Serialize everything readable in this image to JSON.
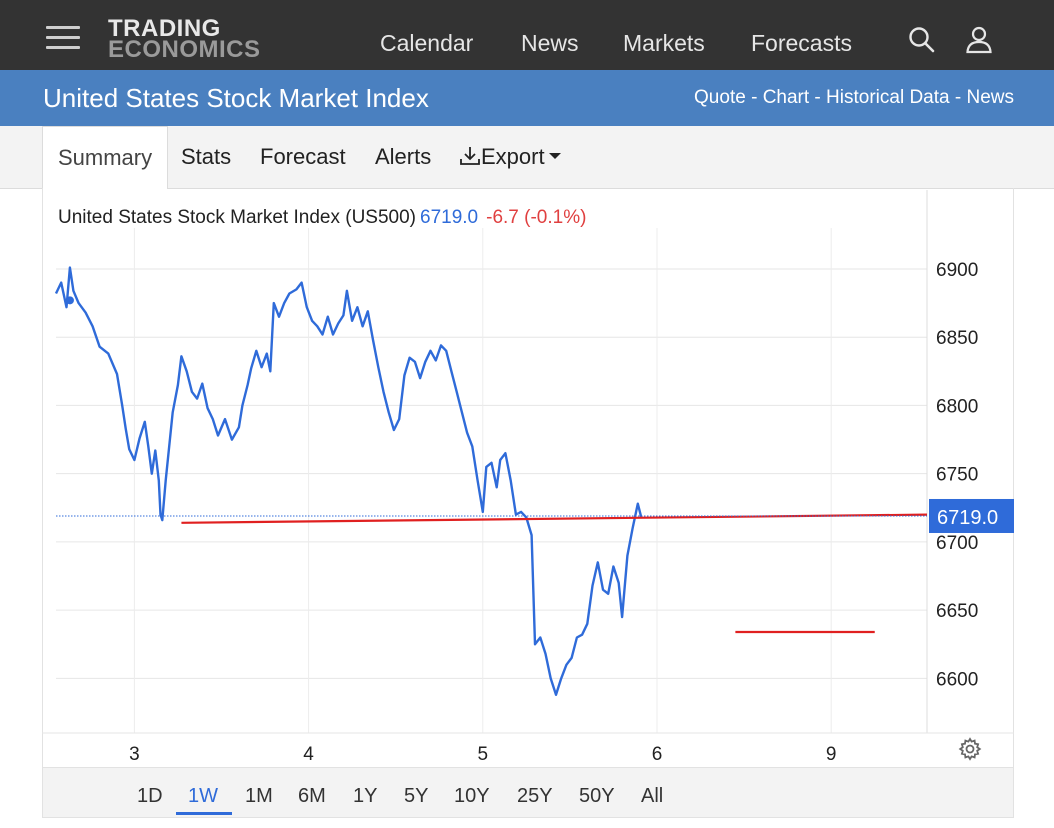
{
  "header": {
    "logo_line1": "TRADING",
    "logo_line2": "ECONOMICS",
    "nav": [
      "Calendar",
      "News",
      "Markets",
      "Forecasts"
    ],
    "icons": [
      "search-icon",
      "user-icon",
      "menu-icon"
    ]
  },
  "title_bar": {
    "title": "United States Stock Market Index",
    "links": [
      "Quote",
      "Chart",
      "Historical Data",
      "News"
    ],
    "separator": " - "
  },
  "tabs": [
    "Summary",
    "Stats",
    "Forecast",
    "Alerts",
    "Export"
  ],
  "chart_header": {
    "name": "United States Stock Market Index (US500)",
    "price": "6719.0",
    "change": "-6.7 (-0.1%)"
  },
  "ranges": [
    "1D",
    "1W",
    "1M",
    "6M",
    "1Y",
    "5Y",
    "10Y",
    "25Y",
    "50Y",
    "All"
  ],
  "active_range": "1W",
  "colors": {
    "topbar": "#333333",
    "bluebar": "#4a80c0",
    "line": "#2f6bd9",
    "annotation": "#e02020",
    "negative": "#e04040"
  },
  "chart_data": {
    "type": "line",
    "ylim": [
      6560,
      6930
    ],
    "y_ticks": [
      6600,
      6650,
      6700,
      6750,
      6800,
      6850,
      6900
    ],
    "x_tick_labels": [
      "3",
      "4",
      "5",
      "6",
      "9"
    ],
    "x_tick_positions": [
      1.0,
      2.0,
      3.0,
      4.0,
      5.0
    ],
    "xlim": [
      0.55,
      5.55
    ],
    "current_value": 6719.0,
    "current_label": "6719.0",
    "series": [
      {
        "values": [
          [
            0.55,
            6882
          ],
          [
            0.58,
            6890
          ],
          [
            0.61,
            6872
          ],
          [
            0.63,
            6901
          ],
          [
            0.65,
            6884
          ],
          [
            0.68,
            6875
          ],
          [
            0.72,
            6868
          ],
          [
            0.76,
            6858
          ],
          [
            0.8,
            6843
          ],
          [
            0.85,
            6838
          ],
          [
            0.9,
            6823
          ],
          [
            0.93,
            6800
          ],
          [
            0.95,
            6783
          ],
          [
            0.97,
            6768
          ],
          [
            1.0,
            6760
          ],
          [
            1.03,
            6776
          ],
          [
            1.06,
            6788
          ],
          [
            1.08,
            6770
          ],
          [
            1.1,
            6750
          ],
          [
            1.12,
            6767
          ],
          [
            1.14,
            6745
          ],
          [
            1.15,
            6720
          ],
          [
            1.16,
            6716
          ],
          [
            1.18,
            6745
          ],
          [
            1.2,
            6770
          ],
          [
            1.22,
            6795
          ],
          [
            1.25,
            6815
          ],
          [
            1.27,
            6836
          ],
          [
            1.3,
            6825
          ],
          [
            1.33,
            6810
          ],
          [
            1.36,
            6805
          ],
          [
            1.39,
            6816
          ],
          [
            1.42,
            6798
          ],
          [
            1.45,
            6790
          ],
          [
            1.48,
            6778
          ],
          [
            1.52,
            6790
          ],
          [
            1.56,
            6775
          ],
          [
            1.6,
            6784
          ],
          [
            1.62,
            6800
          ],
          [
            1.65,
            6815
          ],
          [
            1.67,
            6827
          ],
          [
            1.7,
            6840
          ],
          [
            1.73,
            6828
          ],
          [
            1.76,
            6838
          ],
          [
            1.78,
            6825
          ],
          [
            1.8,
            6875
          ],
          [
            1.83,
            6865
          ],
          [
            1.86,
            6875
          ],
          [
            1.89,
            6882
          ],
          [
            1.93,
            6885
          ],
          [
            1.96,
            6890
          ],
          [
            1.99,
            6872
          ],
          [
            2.02,
            6862
          ],
          [
            2.05,
            6858
          ],
          [
            2.08,
            6852
          ],
          [
            2.11,
            6865
          ],
          [
            2.14,
            6852
          ],
          [
            2.17,
            6860
          ],
          [
            2.2,
            6866
          ],
          [
            2.22,
            6884
          ],
          [
            2.25,
            6862
          ],
          [
            2.28,
            6872
          ],
          [
            2.31,
            6858
          ],
          [
            2.34,
            6869
          ],
          [
            2.37,
            6848
          ],
          [
            2.4,
            6828
          ],
          [
            2.43,
            6810
          ],
          [
            2.46,
            6795
          ],
          [
            2.49,
            6782
          ],
          [
            2.52,
            6790
          ],
          [
            2.55,
            6822
          ],
          [
            2.58,
            6835
          ],
          [
            2.61,
            6832
          ],
          [
            2.64,
            6820
          ],
          [
            2.67,
            6832
          ],
          [
            2.7,
            6840
          ],
          [
            2.73,
            6833
          ],
          [
            2.76,
            6844
          ],
          [
            2.79,
            6840
          ],
          [
            2.82,
            6825
          ],
          [
            2.85,
            6810
          ],
          [
            2.88,
            6795
          ],
          [
            2.91,
            6780
          ],
          [
            2.94,
            6770
          ],
          [
            2.97,
            6745
          ],
          [
            3.0,
            6722
          ],
          [
            3.02,
            6755
          ],
          [
            3.05,
            6758
          ],
          [
            3.08,
            6740
          ],
          [
            3.1,
            6760
          ],
          [
            3.13,
            6765
          ],
          [
            3.16,
            6745
          ],
          [
            3.19,
            6720
          ],
          [
            3.22,
            6722
          ],
          [
            3.25,
            6718
          ],
          [
            3.28,
            6705
          ],
          [
            3.3,
            6625
          ],
          [
            3.33,
            6630
          ],
          [
            3.36,
            6618
          ],
          [
            3.39,
            6600
          ],
          [
            3.42,
            6588
          ],
          [
            3.45,
            6600
          ],
          [
            3.48,
            6610
          ],
          [
            3.51,
            6615
          ],
          [
            3.54,
            6630
          ],
          [
            3.57,
            6632
          ],
          [
            3.6,
            6640
          ],
          [
            3.63,
            6668
          ],
          [
            3.66,
            6685
          ],
          [
            3.69,
            6665
          ],
          [
            3.72,
            6662
          ],
          [
            3.75,
            6682
          ],
          [
            3.78,
            6670
          ],
          [
            3.8,
            6645
          ],
          [
            3.83,
            6690
          ],
          [
            3.86,
            6710
          ],
          [
            3.89,
            6728
          ],
          [
            3.91,
            6718
          ]
        ]
      }
    ],
    "annotations": [
      {
        "type": "line",
        "from": [
          1.27,
          6714
        ],
        "to": [
          5.55,
          6720
        ]
      },
      {
        "type": "line",
        "from": [
          4.45,
          6634
        ],
        "to": [
          5.25,
          6634
        ]
      }
    ]
  }
}
